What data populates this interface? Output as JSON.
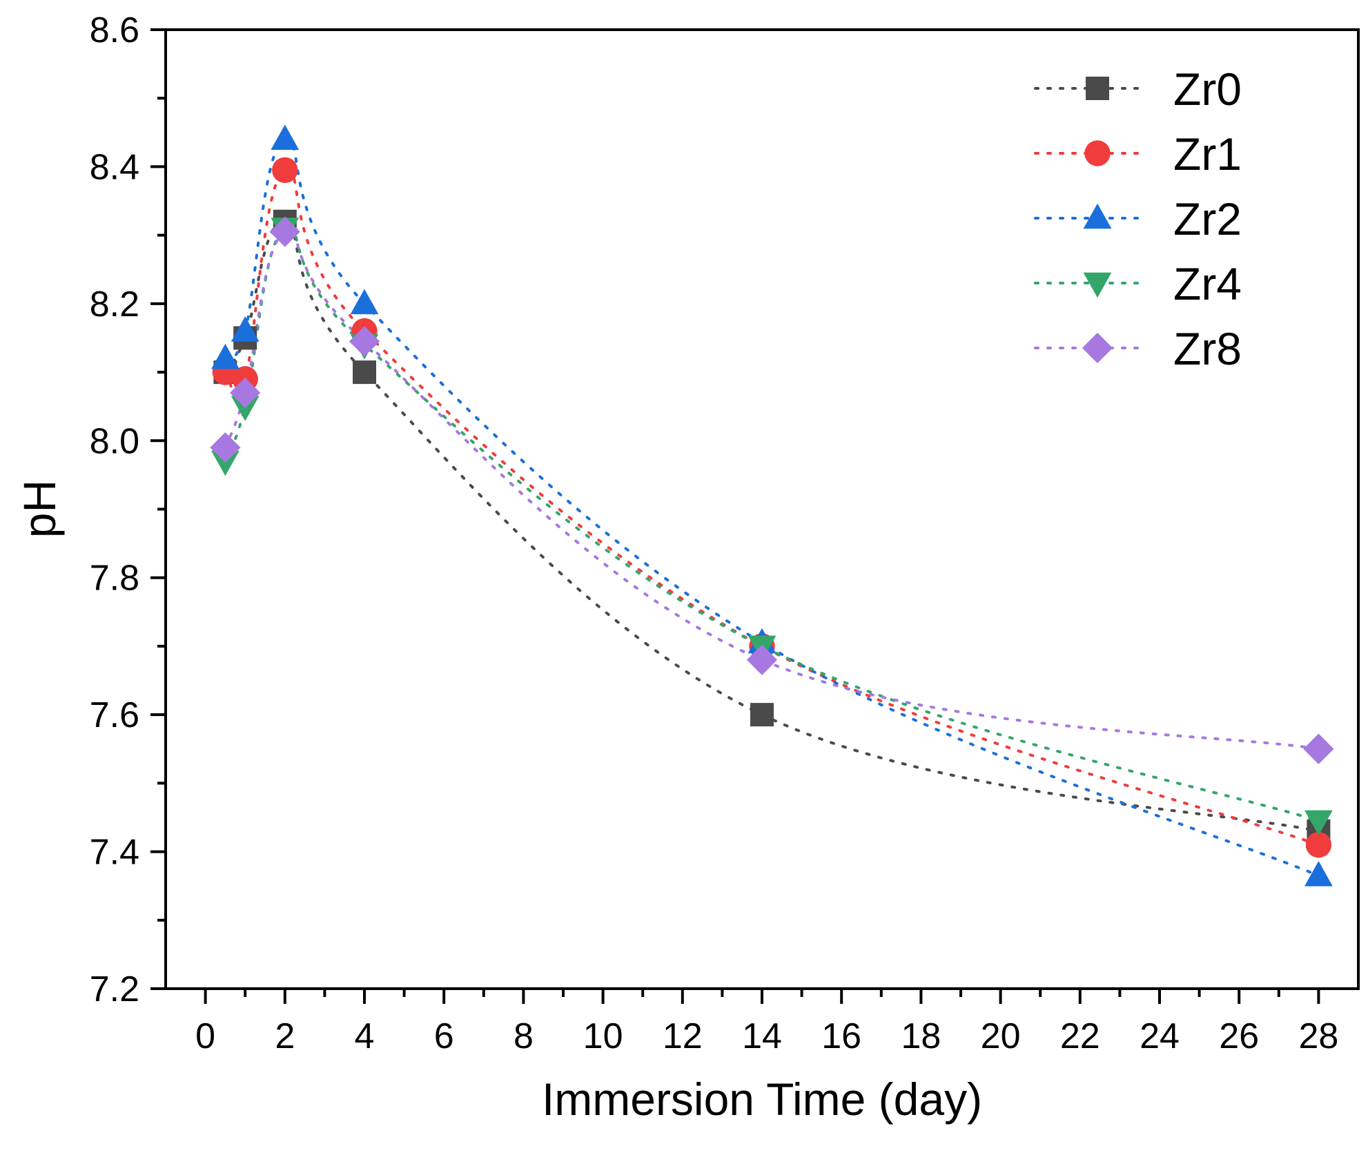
{
  "chart_data": {
    "type": "line",
    "line_style": "dotted",
    "title": "",
    "xlabel": "Immersion Time (day)",
    "ylabel": "pH",
    "xlim": [
      -1,
      29
    ],
    "ylim": [
      7.2,
      8.6
    ],
    "x_ticks": [
      0,
      2,
      4,
      6,
      8,
      10,
      12,
      14,
      16,
      18,
      20,
      22,
      24,
      26,
      28
    ],
    "x_tick_labels": [
      "0",
      "2",
      "4",
      "6",
      "8",
      "10",
      "12",
      "14",
      "16",
      "18",
      "20",
      "22",
      "24",
      "26",
      "28"
    ],
    "y_ticks": [
      7.2,
      7.4,
      7.6,
      7.8,
      8.0,
      8.2,
      8.4,
      8.6
    ],
    "y_tick_labels": [
      "7.2",
      "7.4",
      "7.6",
      "7.8",
      "8.0",
      "8.2",
      "8.4",
      "8.6"
    ],
    "grid": false,
    "legend_position": "top-right",
    "x": [
      0.5,
      1,
      2,
      4,
      14,
      28
    ],
    "series": [
      {
        "name": "Zr0",
        "marker": "square",
        "color": "#4a4a4a",
        "values": [
          8.1,
          8.15,
          8.32,
          8.1,
          7.6,
          7.43
        ]
      },
      {
        "name": "Zr1",
        "marker": "circle",
        "color": "#f03c3c",
        "values": [
          8.1,
          8.09,
          8.395,
          8.16,
          7.7,
          7.41
        ]
      },
      {
        "name": "Zr2",
        "marker": "triangle-up",
        "color": "#1a6fdc",
        "values": [
          8.12,
          8.16,
          8.44,
          8.2,
          7.705,
          7.365
        ]
      },
      {
        "name": "Zr4",
        "marker": "triangle-down",
        "color": "#35a66a",
        "values": [
          7.97,
          8.05,
          8.31,
          8.14,
          7.7,
          7.445
        ]
      },
      {
        "name": "Zr8",
        "marker": "diamond",
        "color": "#a678e0",
        "values": [
          7.99,
          8.07,
          8.305,
          8.145,
          7.68,
          7.55
        ]
      }
    ]
  }
}
